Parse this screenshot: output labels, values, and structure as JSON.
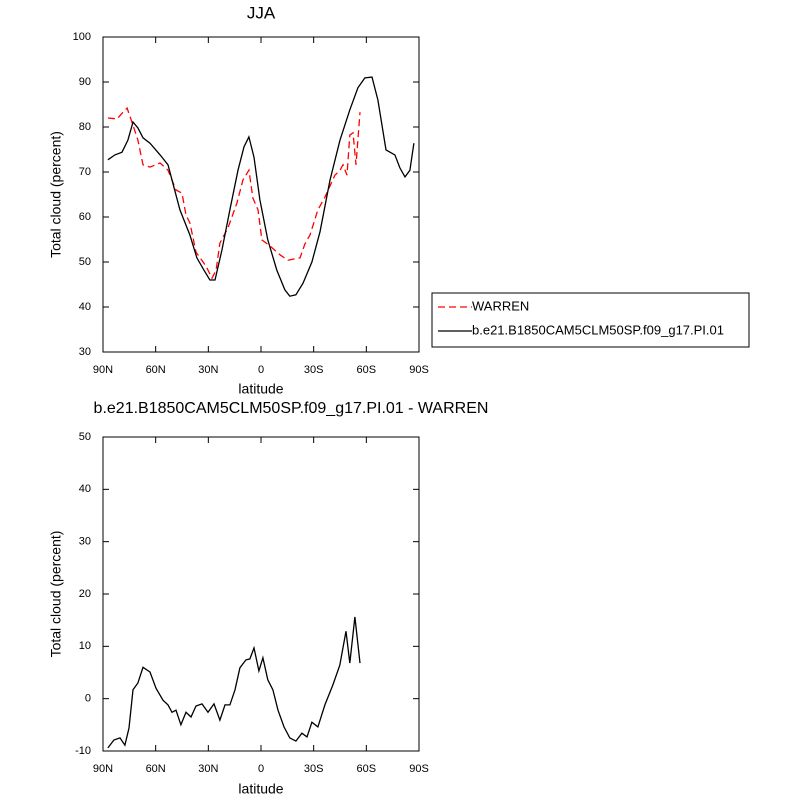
{
  "chart_data": [
    {
      "type": "line",
      "title": "JJA",
      "xlabel": "latitude",
      "ylabel": "Total cloud (percent)",
      "xlim": [
        90,
        -90
      ],
      "xticks": [
        {
          "value": 90,
          "label": "90N"
        },
        {
          "value": 60,
          "label": "60N"
        },
        {
          "value": 30,
          "label": "30N"
        },
        0,
        {
          "value": -30,
          "label": "30S"
        },
        {
          "value": -60,
          "label": "60S"
        },
        {
          "value": -90,
          "label": "90S"
        }
      ],
      "ylim": [
        30,
        100
      ],
      "yticks": [
        30,
        40,
        50,
        60,
        70,
        80,
        90,
        100
      ],
      "legend": "right",
      "series": [
        {
          "name": "WARREN",
          "color": "#ff0000",
          "dash": true,
          "x": [
            87.2,
            82,
            78.6,
            76.3,
            72.9,
            70.1,
            67.2,
            63.2,
            57.5,
            53,
            48.4,
            45,
            42.7,
            40.5,
            37,
            33,
            30.8,
            27.9,
            25.6,
            23.4,
            18.8,
            13.7,
            10.3,
            6.9,
            4.6,
            1.7,
            -0.5,
            -5,
            -10.8,
            -15.3,
            -19.3,
            -22.2,
            -25,
            -27.9,
            -32.4,
            -36.4,
            -42.1,
            -45,
            -46.7,
            -49,
            -50.6,
            -52.4,
            -54.1,
            -56.4
          ],
          "values": [
            82,
            81.8,
            83.3,
            84.2,
            80.4,
            77.1,
            71.6,
            71.1,
            72,
            70.4,
            66,
            65.3,
            60.4,
            58.7,
            52.2,
            50,
            48.7,
            46.4,
            48.2,
            54.2,
            57.6,
            63.1,
            68.2,
            70.4,
            64.2,
            61.6,
            54.9,
            53.6,
            51.6,
            50.4,
            50.7,
            50.9,
            54,
            56,
            61.6,
            64.4,
            69.3,
            70.4,
            71.6,
            69.3,
            78.2,
            78.7,
            71.6,
            83.3
          ]
        },
        {
          "name": "b.e21.B1850CAM5CLM50SP.f09_g17.PI.01",
          "color": "#000000",
          "dash": false,
          "x": [
            87.2,
            83.2,
            79.2,
            75.8,
            72.9,
            70.1,
            67.2,
            63.2,
            57.5,
            53,
            46.2,
            40.5,
            36.5,
            32.5,
            29.1,
            26.2,
            22.2,
            17.7,
            13.1,
            9.7,
            6.9,
            4,
            0.6,
            -3.9,
            -9,
            -13.6,
            -16.4,
            -19.9,
            -23.9,
            -29,
            -33.6,
            -39.3,
            -45,
            -50.6,
            -55.2,
            -59.2,
            -63.2,
            -66.6,
            -71.2,
            -76.3,
            -79.1,
            -82,
            -84.8,
            -87.1
          ],
          "values": [
            72.7,
            73.8,
            74.4,
            77.1,
            81.1,
            79.8,
            77.6,
            76.4,
            73.8,
            71.6,
            61.6,
            56,
            50.9,
            48.2,
            46,
            46,
            52.7,
            61.6,
            70.4,
            75.6,
            77.8,
            73.3,
            63.8,
            54.9,
            48.2,
            43.8,
            42.4,
            42.7,
            45.3,
            50,
            56.7,
            68.2,
            77.1,
            83.8,
            88.7,
            90.9,
            91.1,
            86,
            74.9,
            73.8,
            70.9,
            68.9,
            70.4,
            76.4
          ]
        }
      ]
    },
    {
      "type": "line",
      "title": "b.e21.B1850CAM5CLM50SP.f09_g17.PI.01 - WARREN",
      "xlabel": "latitude",
      "ylabel": "Total cloud (percent)",
      "xlim": [
        90,
        -90
      ],
      "xticks": [
        {
          "value": 90,
          "label": "90N"
        },
        {
          "value": 60,
          "label": "60N"
        },
        {
          "value": 30,
          "label": "30N"
        },
        0,
        {
          "value": -30,
          "label": "30S"
        },
        {
          "value": -60,
          "label": "60S"
        },
        {
          "value": -90,
          "label": "90S"
        }
      ],
      "ylim": [
        -10,
        50
      ],
      "yticks": [
        -10,
        0,
        10,
        20,
        30,
        40,
        50
      ],
      "series": [
        {
          "color": "#000000",
          "dash": false,
          "x": [
            87.2,
            83.8,
            80.3,
            77.5,
            75.2,
            72.9,
            70.1,
            67.2,
            63.2,
            59.8,
            55.8,
            53,
            50.7,
            48.4,
            45.6,
            42.7,
            39.9,
            37,
            33.6,
            30.2,
            26.8,
            23.4,
            20.5,
            17.7,
            14.8,
            12,
            8.6,
            6.3,
            4,
            1.2,
            -1.1,
            -3.9,
            -6.8,
            -9.7,
            -13.1,
            -16.4,
            -19.9,
            -23.3,
            -26.2,
            -29,
            -32.4,
            -36.4,
            -40.9,
            -44.9,
            -48.4,
            -50.6,
            -53.5,
            -56.4
          ],
          "values": [
            -9.4,
            -7.9,
            -7.5,
            -8.9,
            -5.6,
            1.7,
            3,
            6,
            5.1,
            2,
            -0.3,
            -1.2,
            -2.6,
            -2.2,
            -5,
            -2.6,
            -3.5,
            -1.4,
            -1,
            -2.6,
            -1,
            -4.1,
            -1.2,
            -1.2,
            1.7,
            5.9,
            7.4,
            7.6,
            9.7,
            5.3,
            7.8,
            3.6,
            1.7,
            -2.2,
            -5.4,
            -7.5,
            -8.1,
            -6.6,
            -7.3,
            -4.5,
            -5.4,
            -1.2,
            2.6,
            6.4,
            12.9,
            6.8,
            15.6,
            6.8
          ]
        }
      ]
    }
  ]
}
